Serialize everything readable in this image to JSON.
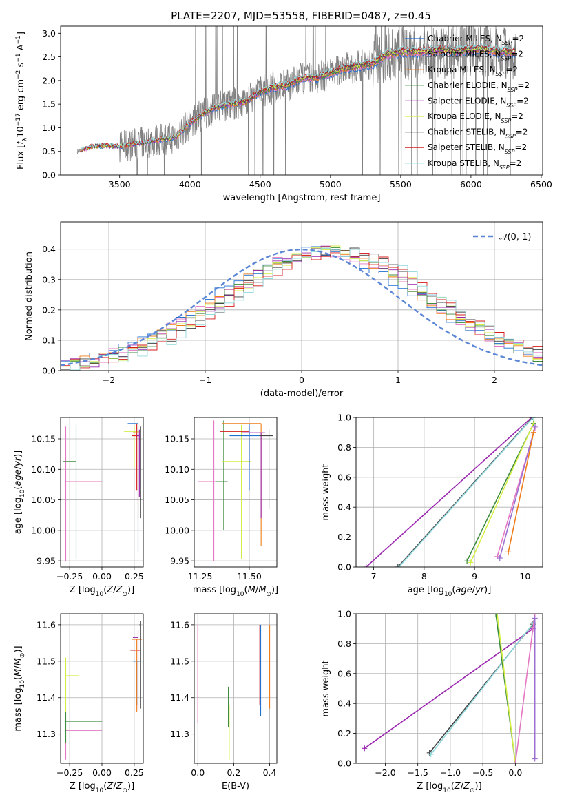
{
  "figure_title": "PLATE=2207, MJD=53558, FIBERID=0487, z=0.45",
  "series_colors": [
    "#1f6fcf",
    "#e377c2",
    "#ee7d1a",
    "#3d8b3d",
    "#9b27b0",
    "#d4ee45",
    "#444444",
    "#d61b1b",
    "#8fd8dc"
  ],
  "chart_data": [
    {
      "id": "spectrum",
      "type": "line",
      "title": "PLATE=2207, MJD=53558, FIBERID=0487, z=0.45",
      "xlabel": "wavelength [Angstrom, rest frame]",
      "ylabel": "Flux [f_λ 10^-17 erg cm^-2 s^-1 A^-1]",
      "xlim": [
        3080,
        6510
      ],
      "ylim": [
        0,
        3.15
      ],
      "xticks": [
        3500,
        4000,
        4500,
        5000,
        5500,
        6000,
        6500
      ],
      "yticks": [
        0.0,
        0.5,
        1.0,
        1.5,
        2.0,
        2.5,
        3.0
      ],
      "legend_position": "upper-right",
      "series": [
        {
          "name": "Chabrier MILES, N_SSP=2"
        },
        {
          "name": "Salpeter MILES, N_SSP=2"
        },
        {
          "name": "Kroupa MILES, N_SSP=2"
        },
        {
          "name": "Chabrier ELODIE, N_SSP=2"
        },
        {
          "name": "Salpeter ELODIE, N_SSP=2"
        },
        {
          "name": "Kroupa ELODIE, N_SSP=2"
        },
        {
          "name": "Chabrier STELIB, N_SSP=2"
        },
        {
          "name": "Salpeter STELIB, N_SSP=2"
        },
        {
          "name": "Kroupa STELIB, N_SSP=2"
        }
      ],
      "model_continuum": {
        "x": [
          3200,
          3300,
          3400,
          3500,
          3600,
          3700,
          3800,
          3900,
          4000,
          4100,
          4200,
          4300,
          4400,
          4500,
          4600,
          4700,
          4800,
          4900,
          5000,
          5100,
          5200,
          5300,
          5400,
          5500,
          5600,
          5700,
          5800,
          5900,
          6000,
          6100,
          6200,
          6300
        ],
        "y": [
          0.5,
          0.6,
          0.62,
          0.6,
          0.65,
          0.7,
          0.75,
          0.8,
          1.1,
          1.3,
          1.45,
          1.5,
          1.55,
          1.75,
          1.85,
          1.9,
          2.05,
          2.05,
          2.15,
          2.25,
          2.3,
          2.35,
          2.55,
          2.6,
          2.6,
          2.6,
          2.65,
          2.6,
          2.65,
          2.65,
          2.6,
          2.6
        ]
      }
    },
    {
      "id": "residuals",
      "type": "histogram",
      "xlabel": "(data-model)/error",
      "ylabel": "Normed distribution",
      "xlim": [
        -2.5,
        2.5
      ],
      "ylim": [
        0,
        0.49
      ],
      "xticks": [
        -2,
        -1,
        0,
        1,
        2
      ],
      "yticks": [
        0.0,
        0.1,
        0.2,
        0.3,
        0.4
      ],
      "grid": true,
      "legend_position": "upper-right",
      "reference_curve": {
        "name": "𝒩(0,1)",
        "mean": 0,
        "sigma": 1
      },
      "bin_width": 0.1,
      "approx_peak_location": 0.3,
      "approx_peak_height": 0.43
    },
    {
      "id": "age-vs-Z",
      "type": "scatter",
      "xlabel": "Z [log10(Z/Z☉)]",
      "ylabel": "age  [log10(age/yr)]",
      "xlim": [
        -0.32,
        0.32
      ],
      "ylim": [
        9.94,
        10.185
      ],
      "xticks": [
        -0.25,
        0.0,
        0.25
      ],
      "yticks": [
        9.95,
        10.0,
        10.05,
        10.1,
        10.15
      ],
      "grid": true,
      "points": [
        {
          "x": -0.28,
          "y": 10.08,
          "xerr": [
            0.0,
            0.28
          ],
          "yerr": [
            0.13,
            0.09
          ]
        },
        {
          "x": -0.2,
          "y": 10.113,
          "xerr": [
            0.1,
            0.0
          ],
          "yerr": [
            0.16,
            0.06
          ]
        },
        {
          "x": 0.25,
          "y": 10.162,
          "xerr": [
            0.08,
            0.05
          ],
          "yerr": [
            0.06,
            0.01
          ]
        },
        {
          "x": 0.27,
          "y": 10.155,
          "xerr": [
            0.04,
            0.03
          ],
          "yerr": [
            0.09,
            0.02
          ]
        },
        {
          "x": 0.28,
          "y": 10.175,
          "xerr": [
            0.08,
            0.0
          ],
          "yerr": [
            0.21,
            0.0
          ]
        },
        {
          "x": 0.28,
          "y": 10.16,
          "xerr": [
            0.04,
            0.01
          ],
          "yerr": [
            0.14,
            0.0
          ]
        },
        {
          "x": 0.29,
          "y": 10.155,
          "xerr": [
            0.02,
            0.0
          ],
          "yerr": [
            0.1,
            0.01
          ]
        },
        {
          "x": 0.3,
          "y": 10.15,
          "xerr": [
            0.01,
            0.0
          ],
          "yerr": [
            0.13,
            0.02
          ]
        }
      ]
    },
    {
      "id": "age-vs-mass",
      "type": "scatter",
      "xlabel": "mass [log10(M/M☉)]",
      "ylabel": "",
      "xlim": [
        11.22,
        11.64
      ],
      "ylim": [
        9.94,
        10.185
      ],
      "xticks": [
        11.25,
        11.5
      ],
      "yticks": [
        9.95,
        10.0,
        10.05,
        10.1,
        10.15
      ],
      "grid": true,
      "points": [
        {
          "x": 11.32,
          "y": 10.08,
          "xerr": [
            0.08,
            0.02
          ],
          "yerr": [
            0.13,
            0.1
          ]
        },
        {
          "x": 11.37,
          "y": 10.08,
          "xerr": [
            0.04,
            0.02
          ],
          "yerr": [
            0.08,
            0.1
          ]
        },
        {
          "x": 11.46,
          "y": 10.113,
          "xerr": [
            0.1,
            0.05
          ],
          "yerr": [
            0.16,
            0.06
          ]
        },
        {
          "x": 11.5,
          "y": 10.162,
          "xerr": [
            0.15,
            0.0
          ],
          "yerr": [
            0.06,
            0.01
          ]
        },
        {
          "x": 11.5,
          "y": 10.155,
          "xerr": [
            0.1,
            0.05
          ],
          "yerr": [
            0.09,
            0.02
          ]
        },
        {
          "x": 11.56,
          "y": 10.175,
          "xerr": [
            0.2,
            0.0
          ],
          "yerr": [
            0.2,
            0.0
          ]
        },
        {
          "x": 11.56,
          "y": 10.16,
          "xerr": [
            0.1,
            0.02
          ],
          "yerr": [
            0.14,
            0.0
          ]
        },
        {
          "x": 11.6,
          "y": 10.155,
          "xerr": [
            0.05,
            0.02
          ],
          "yerr": [
            0.12,
            0.01
          ]
        }
      ]
    },
    {
      "id": "mass-weight-vs-age",
      "type": "line",
      "xlabel": "age  [log10(age/yr)]",
      "ylabel": "mass weight",
      "xlim": [
        6.65,
        10.35
      ],
      "ylim": [
        0,
        1.0
      ],
      "xticks": [
        7,
        8,
        9,
        10
      ],
      "yticks": [
        0.0,
        0.2,
        0.4,
        0.6,
        0.8,
        1.0
      ],
      "grid": true,
      "series": [
        {
          "x": [
            6.85,
            10.13
          ],
          "y": [
            0.0,
            1.0
          ]
        },
        {
          "x": [
            7.48,
            10.15
          ],
          "y": [
            0.0,
            1.0
          ]
        },
        {
          "x": [
            7.5,
            10.16
          ],
          "y": [
            0.0,
            1.0
          ]
        },
        {
          "x": [
            8.85,
            10.17
          ],
          "y": [
            0.04,
            0.96
          ]
        },
        {
          "x": [
            8.92,
            10.18
          ],
          "y": [
            0.03,
            0.97
          ]
        },
        {
          "x": [
            9.45,
            10.2
          ],
          "y": [
            0.07,
            0.93
          ]
        },
        {
          "x": [
            9.5,
            10.2
          ],
          "y": [
            0.06,
            0.94
          ]
        },
        {
          "x": [
            9.67,
            10.17
          ],
          "y": [
            0.1,
            0.9
          ]
        }
      ]
    },
    {
      "id": "mass-vs-Z",
      "type": "scatter",
      "xlabel": "Z [log10(Z/Z☉)]",
      "ylabel": "mass [log10(M/M☉)]",
      "xlim": [
        -0.32,
        0.32
      ],
      "ylim": [
        11.22,
        11.63
      ],
      "xticks": [
        -0.25,
        0.0,
        0.25
      ],
      "yticks": [
        11.3,
        11.4,
        11.5,
        11.6
      ],
      "grid": true,
      "points": [
        {
          "x": -0.28,
          "y": 11.31,
          "xerr": [
            0.0,
            0.28
          ],
          "yerr": [
            0.08,
            0.03
          ]
        },
        {
          "x": -0.28,
          "y": 11.335,
          "xerr": [
            0.0,
            0.28
          ],
          "yerr": [
            0.06,
            0.03
          ]
        },
        {
          "x": -0.28,
          "y": 11.46,
          "xerr": [
            0.0,
            0.1
          ],
          "yerr": [
            0.1,
            0.05
          ]
        },
        {
          "x": 0.22,
          "y": 11.53,
          "xerr": [
            0.0,
            0.08
          ],
          "yerr": [
            0.0,
            0.0
          ]
        },
        {
          "x": 0.27,
          "y": 11.5,
          "xerr": [
            0.03,
            0.03
          ],
          "yerr": [
            0.12,
            0.0
          ]
        },
        {
          "x": 0.27,
          "y": 11.56,
          "xerr": [
            0.04,
            0.04
          ],
          "yerr": [
            0.2,
            0.0
          ]
        },
        {
          "x": 0.28,
          "y": 11.565,
          "xerr": [
            0.04,
            0.0
          ],
          "yerr": [
            0.2,
            0.02
          ]
        },
        {
          "x": 0.3,
          "y": 11.6,
          "xerr": [
            0.01,
            0.0
          ],
          "yerr": [
            0.23,
            0.01
          ]
        }
      ]
    },
    {
      "id": "mass-vs-ebv",
      "type": "scatter",
      "xlabel": "E(B-V)",
      "ylabel": "",
      "xlim": [
        -0.02,
        0.44
      ],
      "ylim": [
        11.22,
        11.63
      ],
      "xticks": [
        0.0,
        0.2,
        0.4
      ],
      "yticks": [
        11.3,
        11.4,
        11.5,
        11.6
      ],
      "grid": true,
      "points": [
        {
          "x": 0.0,
          "y": 11.6,
          "yerr": [
            0.27,
            0.0
          ]
        },
        {
          "x": 0.17,
          "y": 11.4,
          "yerr": [
            0.08,
            0.03
          ]
        },
        {
          "x": 0.175,
          "y": 11.38,
          "yerr": [
            0.15,
            0.0
          ]
        },
        {
          "x": 0.345,
          "y": 11.49,
          "yerr": [
            0.11,
            0.11
          ]
        },
        {
          "x": 0.35,
          "y": 11.45,
          "yerr": [
            0.1,
            0.15
          ]
        },
        {
          "x": 0.4,
          "y": 11.5,
          "yerr": [
            0.13,
            0.1
          ]
        }
      ]
    },
    {
      "id": "mass-weight-vs-Z",
      "type": "line",
      "xlabel": "Z [log10(Z/Z☉)]",
      "ylabel": "mass weight",
      "xlim": [
        -2.45,
        0.42
      ],
      "ylim": [
        0,
        1.0
      ],
      "xticks": [
        -2.0,
        -1.5,
        -1.0,
        -0.5,
        0.0
      ],
      "yticks": [
        0.0,
        0.2,
        0.4,
        0.6,
        0.8,
        1.0
      ],
      "grid": true,
      "series": [
        {
          "x": [
            -2.32,
            0.27
          ],
          "y": [
            0.1,
            0.9
          ]
        },
        {
          "x": [
            -1.32,
            0.27
          ],
          "y": [
            0.07,
            0.93
          ]
        },
        {
          "x": [
            -1.3,
            0.28
          ],
          "y": [
            0.06,
            0.94
          ]
        },
        {
          "x": [
            -0.3,
            0.0
          ],
          "y": [
            1.0,
            0.0
          ]
        },
        {
          "x": [
            -0.28,
            0.0
          ],
          "y": [
            1.0,
            0.0
          ]
        },
        {
          "x": [
            0.0,
            0.3
          ],
          "y": [
            0.0,
            1.0
          ]
        },
        {
          "x": [
            0.3,
            0.3
          ],
          "y": [
            0.03,
            0.97
          ]
        }
      ]
    }
  ]
}
